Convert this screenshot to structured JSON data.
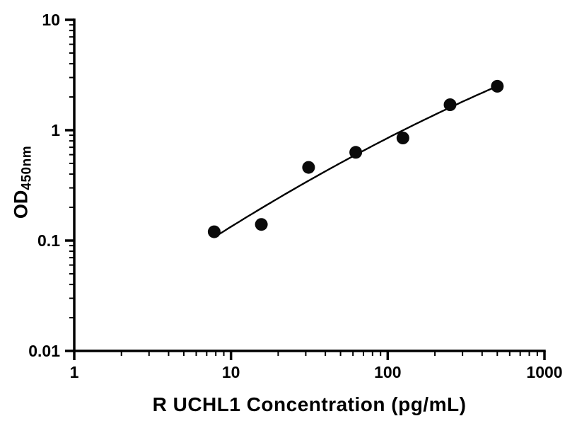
{
  "chart_data": {
    "type": "scatter",
    "title": "",
    "xlabel": "R UCHL1 Concentration (pg/mL)",
    "ylabel_base": "OD",
    "ylabel_sub": "450nm",
    "xscale": "log",
    "yscale": "log",
    "xlim": [
      1,
      1000
    ],
    "ylim": [
      0.01,
      10
    ],
    "grid": false,
    "legend": null,
    "x": [
      7.8125,
      15.625,
      31.25,
      62.5,
      125,
      250,
      500
    ],
    "y": [
      0.12,
      0.14,
      0.46,
      0.63,
      0.85,
      1.7,
      2.5
    ],
    "fit": "quadratic-loglog",
    "x_major_ticks": [
      1,
      10,
      100,
      1000
    ],
    "x_tick_labels": [
      "1",
      "10",
      "100",
      "1000"
    ],
    "y_major_ticks": [
      0.01,
      0.1,
      1,
      10
    ],
    "y_tick_labels": [
      "0.01",
      "0.1",
      "1",
      "10"
    ],
    "axis_color": "#000000",
    "marker_color": "#0a0a0a",
    "line_color": "#000000",
    "background_color": "#ffffff"
  }
}
